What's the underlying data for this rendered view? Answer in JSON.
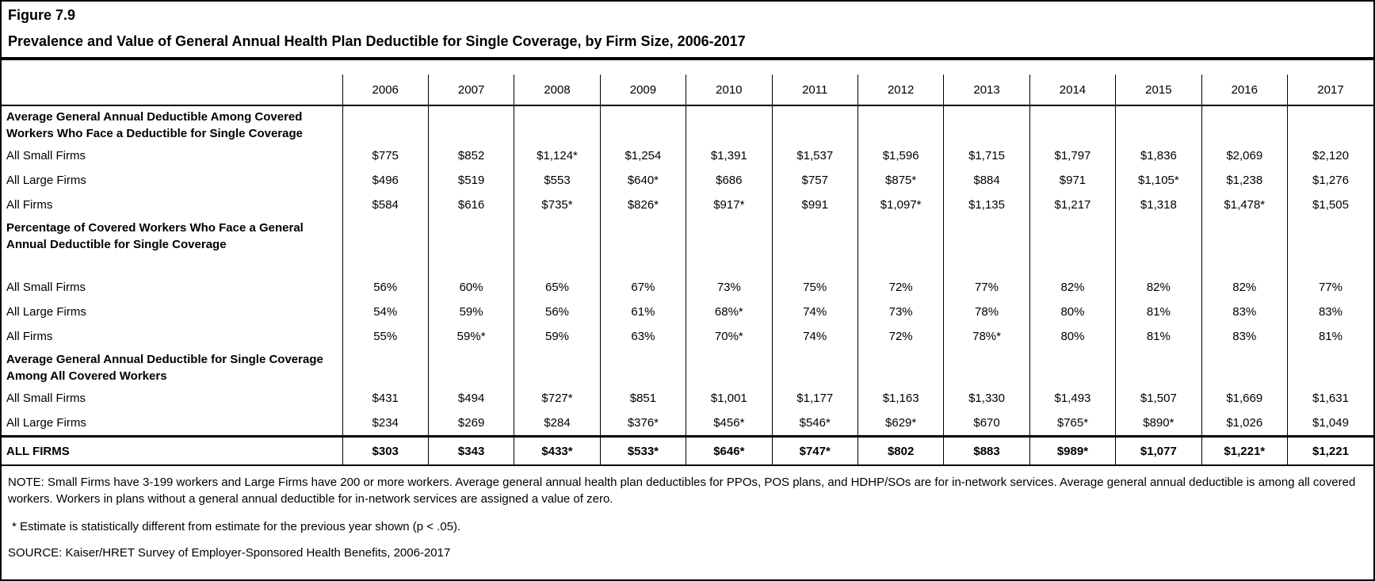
{
  "header": {
    "figure_label": "Figure 7.9",
    "title": "Prevalence and Value of General Annual Health Plan Deductible for Single Coverage, by Firm Size, 2006-2017"
  },
  "chart_data": {
    "type": "table",
    "title": "Prevalence and Value of General Annual Health Plan Deductible for Single Coverage, by Firm Size, 2006-2017",
    "columns": [
      "2006",
      "2007",
      "2008",
      "2009",
      "2010",
      "2011",
      "2012",
      "2013",
      "2014",
      "2015",
      "2016",
      "2017"
    ],
    "sections": [
      {
        "header": "Average General Annual Deductible Among Covered Workers Who Face a Deductible for Single Coverage",
        "spacer_after_header": false,
        "rows": [
          {
            "label": "All Small Firms",
            "values": [
              "$775",
              "$852",
              "$1,124*",
              "$1,254",
              "$1,391",
              "$1,537",
              "$1,596",
              "$1,715",
              "$1,797",
              "$1,836",
              "$2,069",
              "$2,120"
            ]
          },
          {
            "label": "All Large Firms",
            "values": [
              "$496",
              "$519",
              "$553",
              "$640*",
              "$686",
              "$757",
              "$875*",
              "$884",
              "$971",
              "$1,105*",
              "$1,238",
              "$1,276"
            ]
          },
          {
            "label": "All Firms",
            "values": [
              "$584",
              "$616",
              "$735*",
              "$826*",
              "$917*",
              "$991",
              "$1,097*",
              "$1,135",
              "$1,217",
              "$1,318",
              "$1,478*",
              "$1,505"
            ]
          }
        ]
      },
      {
        "header": "Percentage of Covered Workers Who Face a General Annual Deductible for Single Coverage",
        "spacer_after_header": true,
        "rows": [
          {
            "label": "All Small Firms",
            "values": [
              "56%",
              "60%",
              "65%",
              "67%",
              "73%",
              "75%",
              "72%",
              "77%",
              "82%",
              "82%",
              "82%",
              "77%"
            ]
          },
          {
            "label": "All Large Firms",
            "values": [
              "54%",
              "59%",
              "56%",
              "61%",
              "68%*",
              "74%",
              "73%",
              "78%",
              "80%",
              "81%",
              "83%",
              "83%"
            ]
          },
          {
            "label": "All Firms",
            "values": [
              "55%",
              "59%*",
              "59%",
              "63%",
              "70%*",
              "74%",
              "72%",
              "78%*",
              "80%",
              "81%",
              "83%",
              "81%"
            ]
          }
        ]
      },
      {
        "header": "Average General Annual Deductible for Single Coverage Among All Covered Workers",
        "spacer_after_header": false,
        "rows": [
          {
            "label": "All Small Firms",
            "values": [
              "$431",
              "$494",
              "$727*",
              "$851",
              "$1,001",
              "$1,177",
              "$1,163",
              "$1,330",
              "$1,493",
              "$1,507",
              "$1,669",
              "$1,631"
            ]
          },
          {
            "label": "All Large Firms",
            "values": [
              "$234",
              "$269",
              "$284",
              "$376*",
              "$456*",
              "$546*",
              "$629*",
              "$670",
              "$765*",
              "$890*",
              "$1,026",
              "$1,049"
            ]
          }
        ]
      }
    ],
    "total_row": {
      "label": "ALL FIRMS",
      "values": [
        "$303",
        "$343",
        "$433*",
        "$533*",
        "$646*",
        "$747*",
        "$802",
        "$883",
        "$989*",
        "$1,077",
        "$1,221*",
        "$1,221"
      ]
    }
  },
  "notes": {
    "note": "NOTE: Small Firms have 3-199 workers and Large Firms have 200 or more workers. Average general annual health plan deductibles for PPOs, POS plans, and HDHP/SOs are for in-network services. Average general annual deductible is among all covered workers. Workers in plans without a general annual deductible for in-network services are assigned a value of zero.",
    "asterisk_note": "* Estimate is statistically different from estimate for the previous year shown (p < .05).",
    "source": "SOURCE: Kaiser/HRET Survey of Employer-Sponsored Health Benefits, 2006-2017"
  },
  "colors": {
    "border": "#000000",
    "text": "#000000",
    "background": "#ffffff"
  }
}
